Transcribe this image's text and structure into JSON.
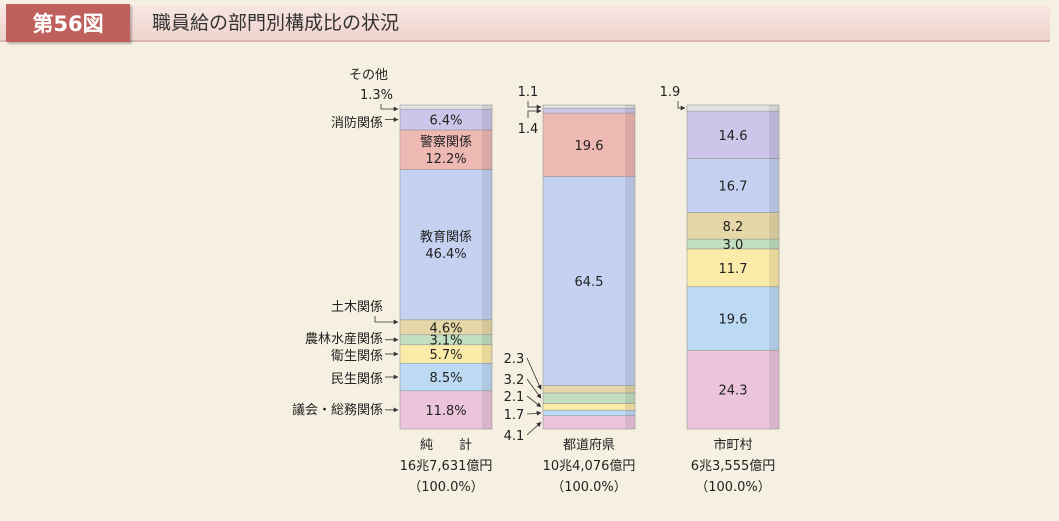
{
  "header": {
    "figure_number": "第56図",
    "title": "職員給の部門別構成比の状況"
  },
  "chart_data": {
    "type": "bar",
    "stacked": true,
    "unit": "%",
    "categories": [
      "純　　計",
      "都道府県",
      "市町村"
    ],
    "totals": [
      "16兆7,631億円",
      "10兆4,076億円",
      "6兆3,555億円"
    ],
    "percent_labels": [
      "（100.0%）",
      "（100.0%）",
      "（100.0%）"
    ],
    "series": [
      {
        "name": "議会・総務関係",
        "values": [
          11.8,
          4.1,
          24.3
        ],
        "color": "#ecc5dd"
      },
      {
        "name": "民生関係",
        "values": [
          8.5,
          1.7,
          19.6
        ],
        "color": "#bcdaf3"
      },
      {
        "name": "衛生関係",
        "values": [
          5.7,
          2.1,
          11.7
        ],
        "color": "#fbeba8"
      },
      {
        "name": "農林水産関係",
        "values": [
          3.1,
          3.2,
          3.0
        ],
        "color": "#c2e0c0"
      },
      {
        "name": "土木関係",
        "values": [
          4.6,
          2.3,
          8.2
        ],
        "color": "#e5d7a7"
      },
      {
        "name": "教育関係",
        "values": [
          46.4,
          64.5,
          16.7
        ],
        "color": "#c5d1f1"
      },
      {
        "name": "警察関係",
        "values": [
          12.2,
          19.6,
          0
        ],
        "color": "#eeb8b3"
      },
      {
        "name": "消防関係",
        "values": [
          6.4,
          1.4,
          14.6
        ],
        "color": "#cbc6ea"
      },
      {
        "name": "その他",
        "values": [
          1.3,
          1.1,
          1.9
        ],
        "color": "#e2e2e2"
      }
    ],
    "segment_labels": [
      [
        "11.8%",
        "8.5%",
        "5.7%",
        "3.1%",
        "4.6%",
        "教育関係\n46.4%",
        "警察関係\n12.2%",
        "6.4%",
        ""
      ],
      [
        "",
        "",
        "",
        "",
        "",
        "64.5",
        "19.6",
        "",
        ""
      ],
      [
        "24.3",
        "19.6",
        "11.7",
        "3.0",
        "8.2",
        "16.7",
        "",
        "14.6",
        ""
      ]
    ],
    "left_labels": {
      "sonota": [
        "その他",
        "1.3%"
      ],
      "shobo": "消防関係",
      "doboku": "土木関係",
      "norin": "農林水産関係",
      "eisei": "衛生関係",
      "minsei": "民生関係",
      "gikai": "議会・総務関係"
    },
    "outside_values": {
      "pref_top": [
        "1.1",
        "1.4"
      ],
      "pref_bottom": [
        "2.3",
        "3.2",
        "2.1",
        "1.7",
        "4.1"
      ],
      "city_top": "1.9"
    }
  }
}
